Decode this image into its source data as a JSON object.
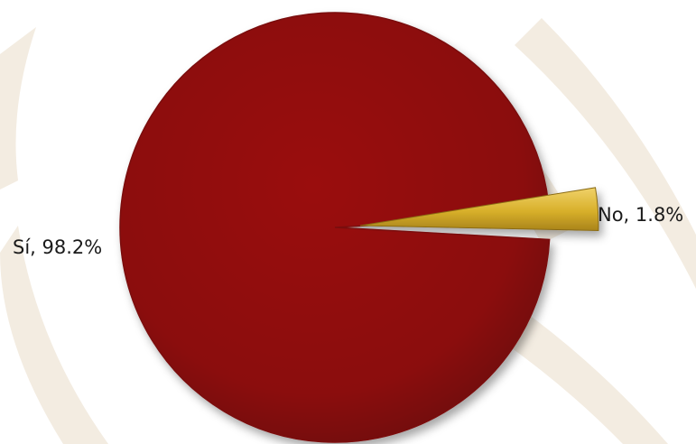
{
  "chart_data": {
    "type": "pie",
    "slices": [
      {
        "label": "Sí",
        "value": 98.2,
        "display": "Sí, 98.2%",
        "color": "#8b0a0a"
      },
      {
        "label": "No",
        "value": 1.8,
        "display": "No, 1.8%",
        "color": "#d8b02a"
      }
    ],
    "legend": "none",
    "exploded": "No"
  },
  "colors": {
    "background": "#ffffff",
    "watermark": "#f1e9dc"
  }
}
